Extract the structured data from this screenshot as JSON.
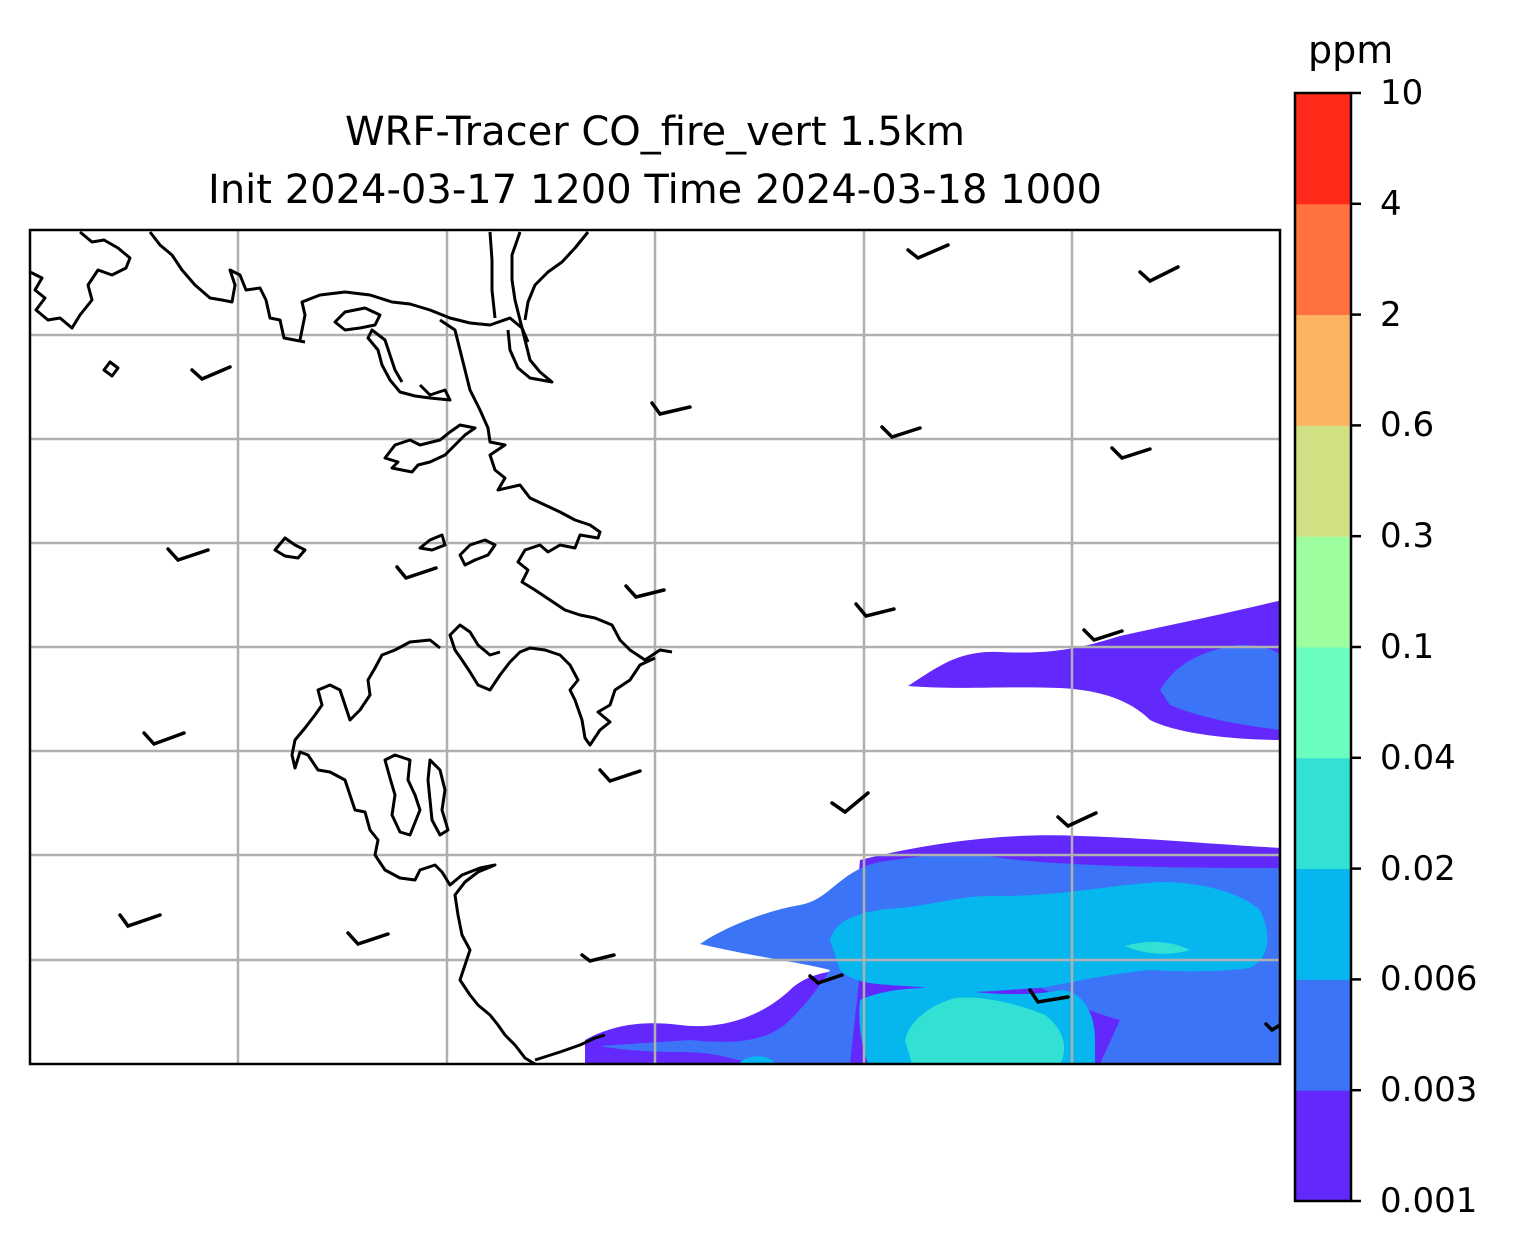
{
  "title": {
    "line1": "WRF-Tracer CO_fire_vert 1.5km",
    "line2": "Init 2024-03-17 1200 Time 2024-03-18 1000"
  },
  "colorbar": {
    "unit": "ppm",
    "levels": [
      "0.001",
      "0.003",
      "0.006",
      "0.02",
      "0.04",
      "0.1",
      "0.3",
      "0.6",
      "2",
      "4",
      "10"
    ],
    "colors": [
      "#6328fb",
      "#3b74f6",
      "#05b6ef",
      "#32e1d4",
      "#6afdbd",
      "#9dfea0",
      "#d0e183",
      "#fdb462",
      "#ff7240",
      "#ff2a19"
    ]
  },
  "map": {
    "gridlines": true,
    "features": [
      "coastline",
      "wind-barbs",
      "co-tracer-contours"
    ]
  }
}
